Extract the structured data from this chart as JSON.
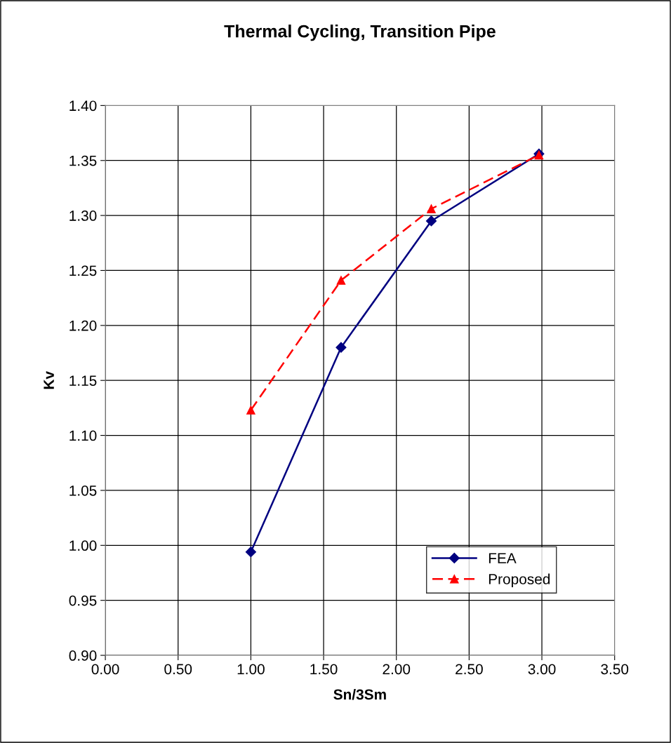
{
  "chart_data": {
    "type": "line",
    "title": "Thermal Cycling, Transition Pipe",
    "xlabel": "Sn/3Sm",
    "ylabel": "Kv",
    "xlim": [
      0,
      3.5
    ],
    "xticks": [
      {
        "value": 0,
        "label": "0.00"
      },
      {
        "value": 0.5,
        "label": "0.50"
      },
      {
        "value": 1,
        "label": "1.00"
      },
      {
        "value": 1.5,
        "label": "1.50"
      },
      {
        "value": 2,
        "label": "2.00"
      },
      {
        "value": 2.5,
        "label": "2.50"
      },
      {
        "value": 3,
        "label": "3.00"
      },
      {
        "value": 3.5,
        "label": "3.50"
      }
    ],
    "ylim": [
      0.9,
      1.4
    ],
    "yticks": [
      {
        "value": 0.9,
        "label": "0.90"
      },
      {
        "value": 0.95,
        "label": "0.95"
      },
      {
        "value": 1.0,
        "label": "1.00"
      },
      {
        "value": 1.05,
        "label": "1.05"
      },
      {
        "value": 1.1,
        "label": "1.10"
      },
      {
        "value": 1.15,
        "label": "1.15"
      },
      {
        "value": 1.2,
        "label": "1.20"
      },
      {
        "value": 1.25,
        "label": "1.25"
      },
      {
        "value": 1.3,
        "label": "1.30"
      },
      {
        "value": 1.35,
        "label": "1.35"
      },
      {
        "value": 1.4,
        "label": "1.40"
      }
    ],
    "x": [
      1.0,
      1.62,
      2.24,
      2.98
    ],
    "series": [
      {
        "name": "FEA",
        "color": "#000080",
        "values": [
          0.994,
          1.18,
          1.295,
          1.356
        ],
        "marker": "diamond",
        "line_style": "solid"
      },
      {
        "name": "Proposed",
        "color": "#ff0000",
        "values": [
          1.123,
          1.241,
          1.306,
          1.355
        ],
        "marker": "triangle",
        "line_style": "dashed"
      }
    ],
    "grid": true,
    "legend": "lower right"
  }
}
